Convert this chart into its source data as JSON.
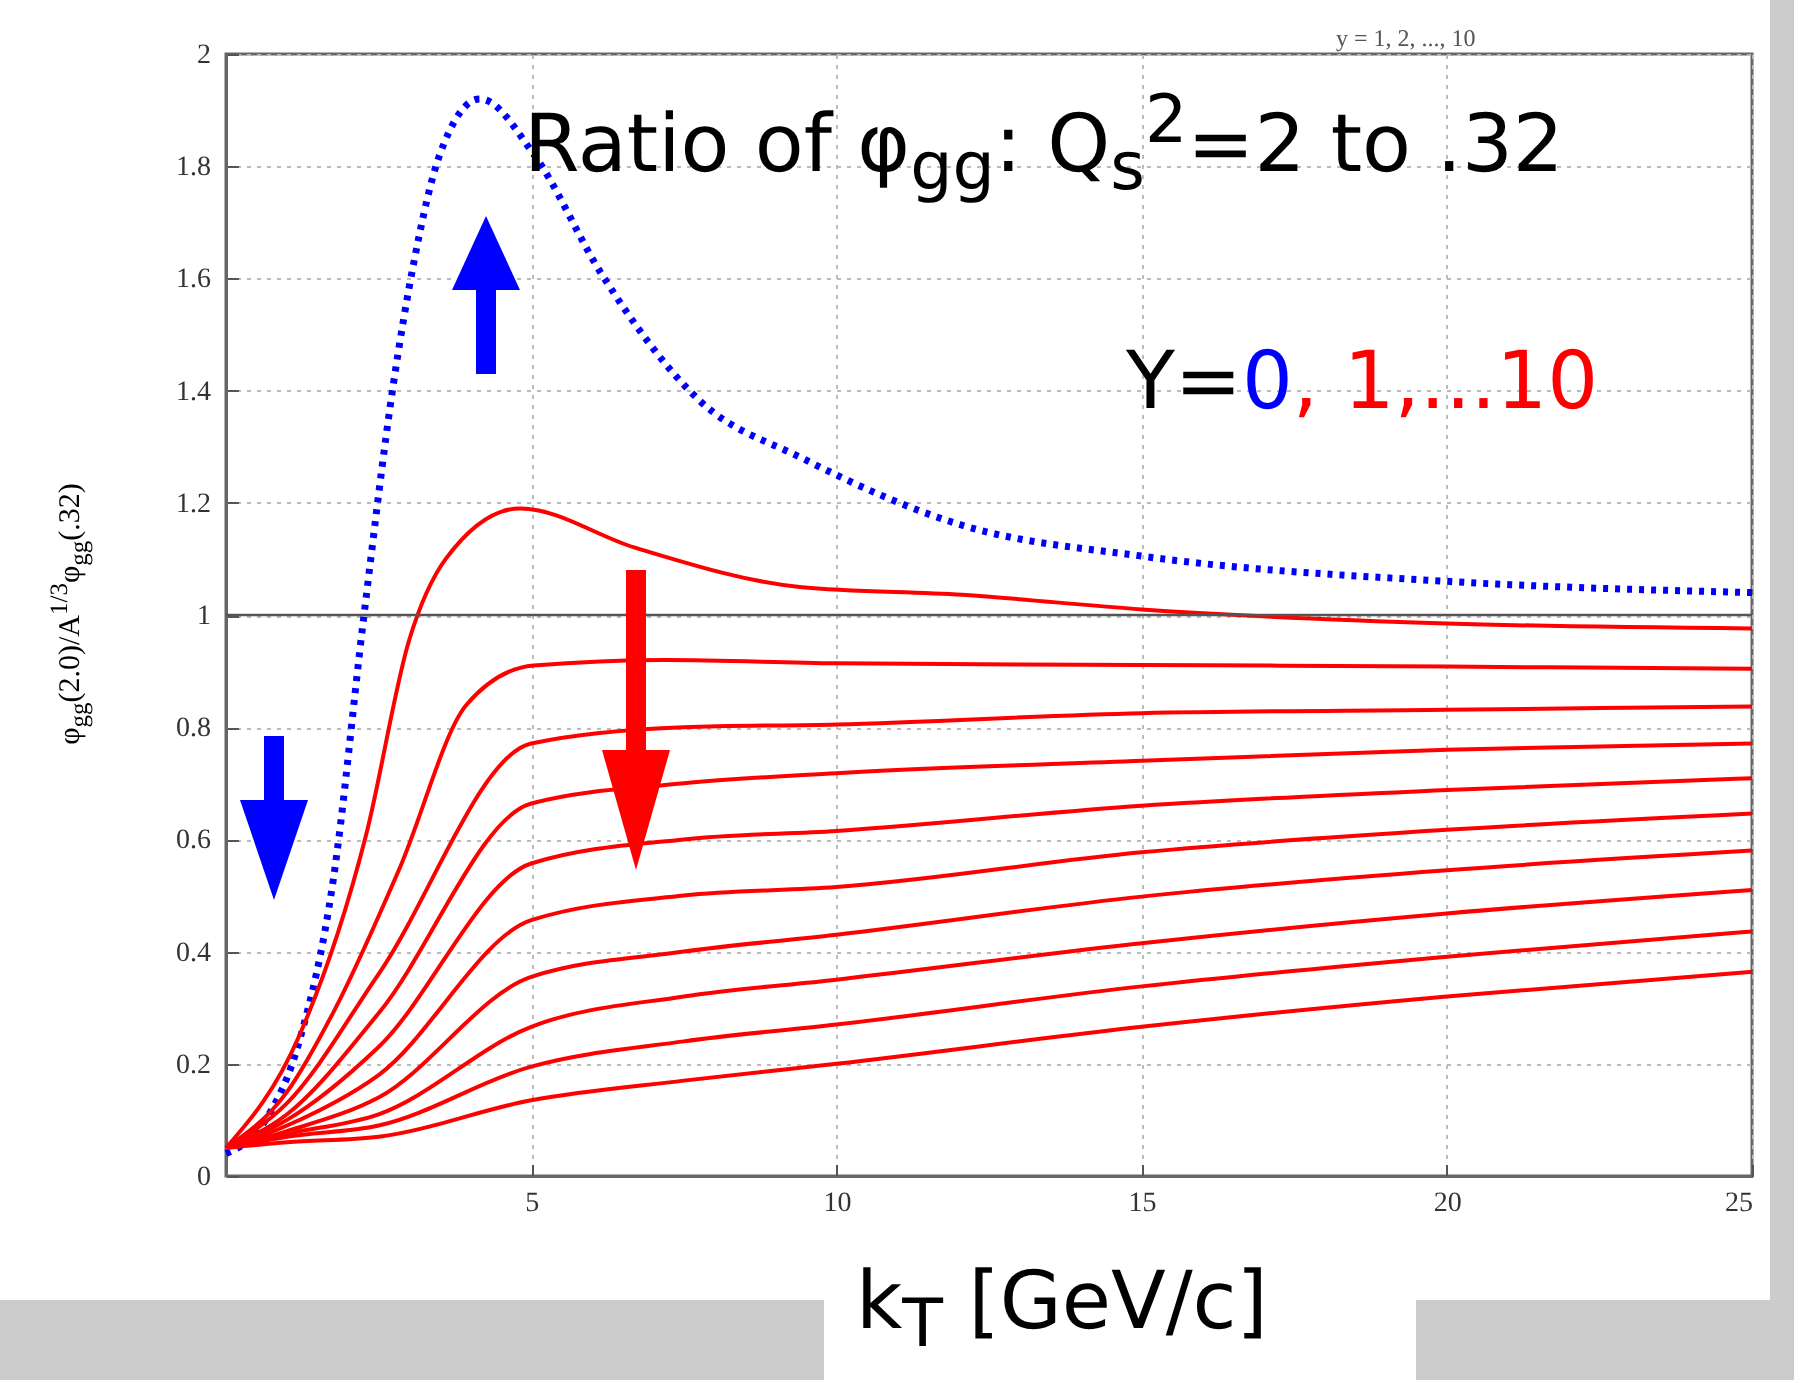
{
  "chart_data": {
    "type": "line",
    "title": "Ratio of φ$_{gg}$: Q$_{s}$$^{2}$=2 to .32",
    "xlabel": "k$_{T}$  [GeV/c]",
    "ylabel": "φ$_{gg}$(2.0)/A$^{1/3}$φ$_{gg}$(.32)",
    "annotations": [
      "Y=",
      "0",
      ", 1,...10",
      "y = 1, 2, ..., 10"
    ],
    "xlim": [
      0,
      25
    ],
    "xticks": [
      5,
      10,
      15,
      20,
      25
    ],
    "ylim": [
      0,
      2
    ],
    "yticks": [
      0,
      0.2,
      0.4,
      0.6,
      0.8,
      1,
      1.2,
      1.4,
      1.6,
      1.8,
      2
    ],
    "grid": true,
    "ref_lines": [
      {
        "axis": "y",
        "value": 1,
        "color": "#555555",
        "line_style": "solid"
      }
    ],
    "series": [
      {
        "color": "#0000ff",
        "line_style": "dotted",
        "x": [
          0,
          0.65,
          1.2,
          1.76,
          2.25,
          2.74,
          3.08,
          3.5,
          4.16,
          5.05,
          6.14,
          7.78,
          9.43,
          12.06,
          15,
          20,
          25
        ],
        "values": [
          0.04,
          0.1,
          0.24,
          0.53,
          0.99,
          1.41,
          1.63,
          1.82,
          1.92,
          1.82,
          1.61,
          1.38,
          1.28,
          1.16,
          1.105,
          1.06,
          1.04
        ]
      },
      {
        "color": "#ff0000",
        "x": [
          0,
          1.2,
          2.3,
          3,
          3.6,
          4.82,
          6.7,
          9.4,
          12.06,
          15,
          20,
          25
        ],
        "values": [
          0.05,
          0.25,
          0.61,
          0.955,
          1.1,
          1.19,
          1.12,
          1.05,
          1.036,
          1.01,
          0.985,
          0.976
        ]
      },
      {
        "color": "#ff0000",
        "x": [
          0,
          1,
          1.75,
          2.85,
          3.94,
          5.04,
          7.2,
          10,
          15,
          20,
          25
        ],
        "values": [
          0.05,
          0.15,
          0.29,
          0.55,
          0.84,
          0.91,
          0.92,
          0.914,
          0.911,
          0.908,
          0.904
        ]
      },
      {
        "color": "#ff0000",
        "x": [
          0,
          1,
          2.5,
          5,
          7.5,
          10,
          15,
          20,
          25
        ],
        "values": [
          0.05,
          0.13,
          0.36,
          0.771,
          0.8,
          0.805,
          0.825,
          0.831,
          0.837
        ]
      },
      {
        "color": "#ff0000",
        "x": [
          0,
          1,
          2.5,
          5,
          7.5,
          10,
          15,
          20,
          25
        ],
        "values": [
          0.05,
          0.11,
          0.29,
          0.664,
          0.7,
          0.718,
          0.74,
          0.76,
          0.771
        ]
      },
      {
        "color": "#ff0000",
        "x": [
          0,
          1,
          2.5,
          5,
          7.5,
          10,
          15,
          20,
          25
        ],
        "values": [
          0.05,
          0.1,
          0.23,
          0.557,
          0.6,
          0.615,
          0.66,
          0.688,
          0.709
        ]
      },
      {
        "color": "#ff0000",
        "x": [
          0,
          1,
          2.5,
          5,
          7.5,
          10,
          15,
          20,
          25
        ],
        "values": [
          0.05,
          0.09,
          0.18,
          0.456,
          0.5,
          0.515,
          0.577,
          0.617,
          0.646
        ]
      },
      {
        "color": "#ff0000",
        "x": [
          0,
          1,
          2.5,
          5,
          7.5,
          10,
          15,
          20,
          25
        ],
        "values": [
          0.05,
          0.08,
          0.14,
          0.355,
          0.4,
          0.43,
          0.498,
          0.545,
          0.58
        ]
      },
      {
        "color": "#ff0000",
        "x": [
          0,
          1,
          2.5,
          5,
          7.5,
          10,
          15,
          20,
          25
        ],
        "values": [
          0.05,
          0.075,
          0.11,
          0.266,
          0.32,
          0.35,
          0.415,
          0.468,
          0.51
        ]
      },
      {
        "color": "#ff0000",
        "x": [
          0,
          1,
          2.5,
          5,
          7.5,
          10,
          15,
          20,
          25
        ],
        "values": [
          0.05,
          0.07,
          0.09,
          0.195,
          0.24,
          0.27,
          0.338,
          0.391,
          0.436
        ]
      },
      {
        "color": "#ff0000",
        "x": [
          0,
          1,
          2.5,
          5,
          7.5,
          10,
          15,
          20,
          25
        ],
        "values": [
          0.05,
          0.06,
          0.07,
          0.135,
          0.17,
          0.2,
          0.266,
          0.32,
          0.364
        ]
      }
    ]
  }
}
